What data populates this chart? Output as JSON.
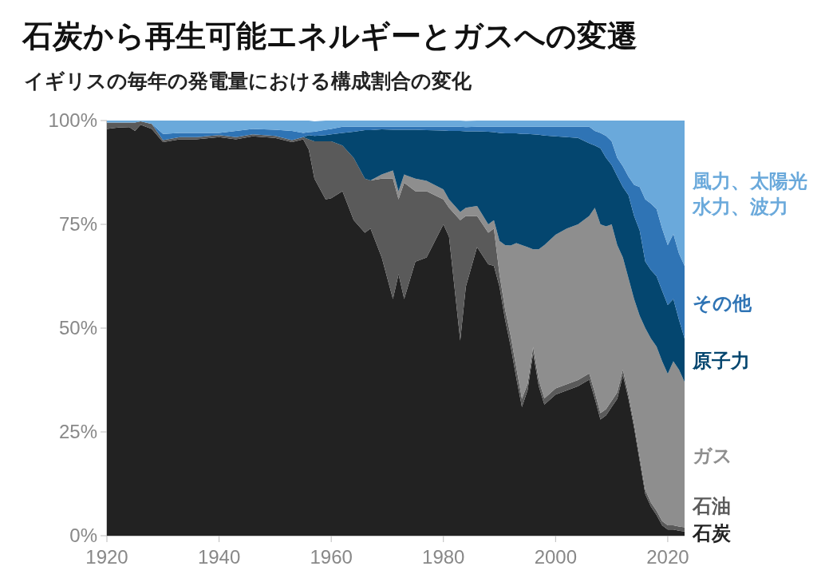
{
  "chart_data": {
    "type": "area",
    "stacked": true,
    "title": "石炭から再生可能エネルギーとガスへの変遷",
    "subtitle": "イギリスの毎年の発電量における構成割合の変化",
    "x": [
      1920,
      1922,
      1924,
      1925,
      1926,
      1928,
      1930,
      1933,
      1936,
      1940,
      1943,
      1946,
      1950,
      1953,
      1955,
      1956,
      1957,
      1959,
      1960,
      1962,
      1964,
      1966,
      1967,
      1969,
      1971,
      1972,
      1973,
      1975,
      1977,
      1980,
      1981,
      1983,
      1984,
      1986,
      1988,
      1989,
      1990,
      1991,
      1992,
      1993,
      1994,
      1995,
      1996,
      1997,
      1998,
      2000,
      2002,
      2004,
      2006,
      2007,
      2008,
      2009,
      2010,
      2011,
      2012,
      2013,
      2014,
      2015,
      2016,
      2017,
      2018,
      2019,
      2020,
      2021,
      2022,
      2023
    ],
    "series": [
      {
        "name": "石炭",
        "color": "#222222",
        "values": [
          98,
          98.3,
          98.4,
          97.5,
          99,
          98,
          94.8,
          95.5,
          95.5,
          96,
          95.5,
          96.2,
          95.8,
          94.8,
          95.5,
          93,
          86,
          81,
          81.3,
          83,
          76,
          73,
          74,
          67,
          57,
          63,
          57,
          66,
          67,
          75,
          72,
          47,
          60,
          69.5,
          65.4,
          65,
          60,
          52,
          45.6,
          38,
          31,
          35,
          44,
          36,
          31.6,
          34,
          35,
          36,
          37.6,
          33,
          28,
          29,
          31,
          33,
          38.7,
          33,
          26,
          18,
          10,
          7,
          5,
          2.5,
          1.5,
          1.5,
          1.2,
          1
        ]
      },
      {
        "name": "石油",
        "color": "#5a5a5a",
        "values": [
          1.5,
          1.2,
          1.1,
          2,
          0.8,
          1.2,
          0.5,
          0.5,
          0.5,
          0.5,
          0.5,
          0.5,
          0.5,
          0.5,
          0.5,
          2.5,
          9,
          14,
          13.7,
          11,
          15,
          13,
          11.6,
          19,
          29,
          18,
          28,
          17,
          16,
          6,
          7,
          29,
          17,
          7.5,
          7.6,
          9,
          3,
          2.5,
          2.5,
          2.5,
          2,
          1.5,
          1.5,
          1.5,
          1.5,
          1.5,
          1.5,
          1.5,
          1.5,
          1.5,
          1.5,
          1.5,
          1.5,
          1.5,
          1.3,
          1,
          1,
          1,
          1,
          1,
          1,
          1,
          1,
          1,
          1,
          1
        ]
      },
      {
        "name": "ガス",
        "color": "#8e8e8e",
        "values": [
          0,
          0,
          0,
          0,
          0,
          0,
          0,
          0,
          0,
          0,
          0,
          0,
          0,
          0,
          0,
          0,
          0,
          0,
          0,
          0,
          0,
          0,
          0,
          1,
          2,
          2,
          2,
          3,
          2.5,
          2.4,
          2,
          2,
          2,
          2.4,
          2,
          2,
          8,
          15.5,
          21.8,
          30,
          37,
          33,
          23.5,
          31.5,
          36.9,
          37,
          37.5,
          37.5,
          37.9,
          44.5,
          45.5,
          44,
          42.5,
          35.5,
          27,
          28,
          30,
          34,
          39,
          39.5,
          39.6,
          38.5,
          36.5,
          39.5,
          37.8,
          35
        ]
      },
      {
        "name": "原子力",
        "color": "#04466f",
        "values": [
          0,
          0,
          0,
          0,
          0,
          0,
          0,
          0,
          0,
          0,
          0,
          0,
          0,
          0,
          0,
          1,
          1.3,
          1.5,
          1.7,
          3,
          6.3,
          11.7,
          12.1,
          10.9,
          9.8,
          14.8,
          10.8,
          11.8,
          12.2,
          14.2,
          16.5,
          19.5,
          18.4,
          18,
          22.3,
          21.2,
          26,
          26.9,
          27,
          26.4,
          26.8,
          27.3,
          27.7,
          27.6,
          26.4,
          23.7,
          22,
          20.8,
          17.5,
          15,
          18.3,
          16.5,
          14.3,
          16.6,
          17,
          20,
          20,
          20.5,
          16,
          16.5,
          16.9,
          17,
          16.6,
          15,
          12,
          10.5
        ]
      },
      {
        "name": "その他",
        "color": "#2f74b5",
        "values": [
          0,
          0,
          0,
          0,
          0,
          0,
          1.5,
          1,
          1,
          0.5,
          1.5,
          1.3,
          1.5,
          2.2,
          1,
          0.7,
          1,
          1.3,
          1.3,
          1.5,
          1.2,
          0.8,
          0.8,
          0.6,
          0.7,
          0.7,
          0.7,
          0.7,
          0.8,
          0.9,
          1,
          1,
          1,
          1.1,
          1.2,
          1.3,
          1.5,
          1.6,
          1.6,
          1.6,
          1.7,
          1.7,
          1.8,
          1.9,
          2.1,
          2.3,
          2.5,
          2.7,
          4,
          3.5,
          3.7,
          5.3,
          5.7,
          4.4,
          5,
          4.5,
          7.5,
          10.5,
          15,
          16,
          16.2,
          15,
          14.4,
          15.7,
          16,
          17.5
        ]
      },
      {
        "name": "風力、太陽光水力、波力",
        "color": "#6aa9db",
        "values": [
          0.5,
          0.5,
          0.5,
          0.5,
          0.2,
          0.8,
          3.2,
          3,
          3,
          3,
          2.5,
          2,
          2.2,
          2.5,
          3,
          2.8,
          2.5,
          2.2,
          2,
          1.5,
          1.5,
          1.5,
          1.5,
          1.5,
          1.5,
          1.5,
          1.5,
          1.5,
          1.5,
          1.5,
          1.5,
          1.5,
          1.5,
          1.5,
          1.5,
          1.5,
          1.5,
          1.5,
          1.5,
          1.5,
          1.5,
          1.5,
          1.5,
          1.5,
          1.5,
          1.5,
          1.5,
          1.5,
          1.5,
          2.5,
          3,
          3.7,
          5,
          9,
          11,
          13.5,
          15.5,
          16,
          19,
          20,
          21.3,
          26,
          30,
          27.3,
          32,
          35
        ]
      }
    ],
    "xlim": [
      1920,
      2023
    ],
    "xticks": [
      1920,
      1940,
      1960,
      1980,
      2000,
      2020
    ],
    "ylim": [
      0,
      100
    ],
    "yticks": [
      {
        "value": 0,
        "label": "0%"
      },
      {
        "value": 25,
        "label": "25%"
      },
      {
        "value": 50,
        "label": "50%"
      },
      {
        "value": 75,
        "label": "75%"
      },
      {
        "value": 100,
        "label": "100%"
      }
    ],
    "grid": false,
    "legend": false
  }
}
